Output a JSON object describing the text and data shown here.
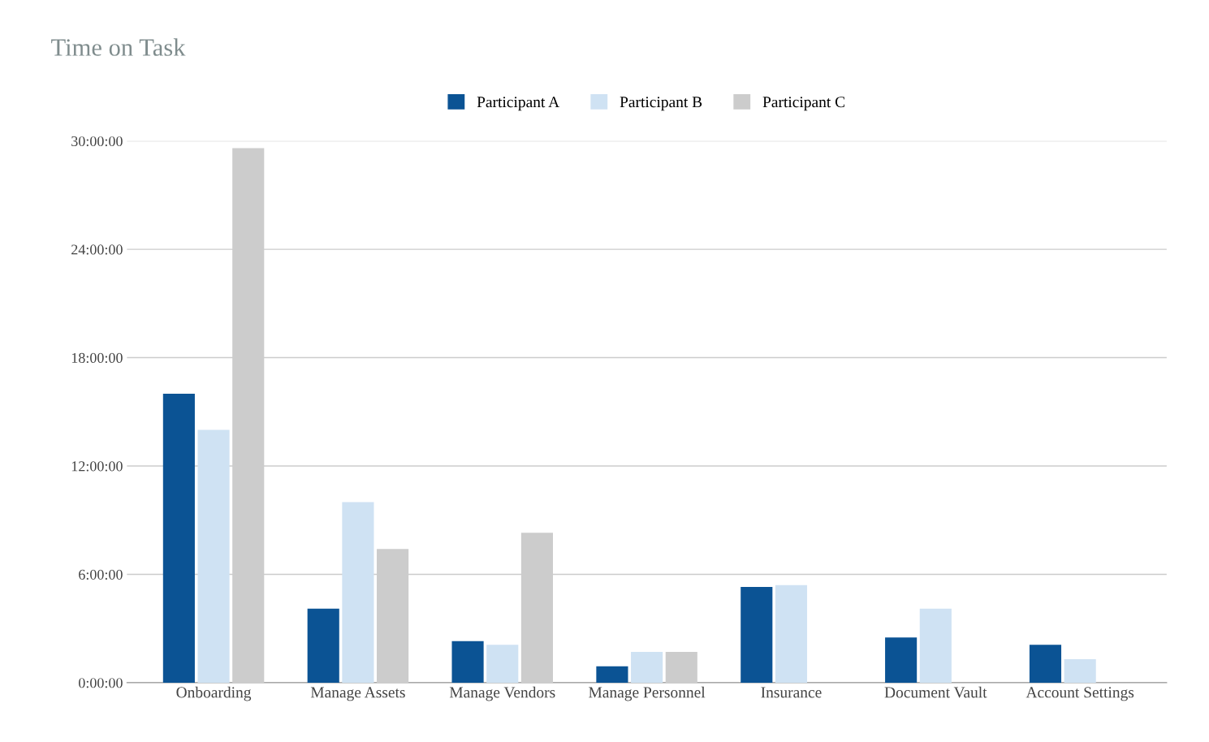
{
  "chart_data": {
    "type": "bar",
    "title": "Time on Task",
    "categories": [
      "Onboarding",
      "Manage Assets",
      "Manage Vendors",
      "Manage Personnel",
      "Insurance",
      "Document Vault",
      "Account Settings"
    ],
    "series": [
      {
        "name": "Participant A",
        "color": "#0b5394",
        "values": [
          16.0,
          4.1,
          2.3,
          0.9,
          5.3,
          2.5,
          2.1
        ]
      },
      {
        "name": "Participant B",
        "color": "#cfe2f3",
        "values": [
          14.0,
          10.0,
          2.1,
          1.7,
          5.4,
          4.1,
          1.3
        ]
      },
      {
        "name": "Participant C",
        "color": "#cccccc",
        "values": [
          29.6,
          7.4,
          8.3,
          1.7,
          null,
          null,
          null
        ]
      }
    ],
    "ylim": [
      0,
      30
    ],
    "yticks": [
      {
        "value": 0,
        "label": "0:00:00"
      },
      {
        "value": 6,
        "label": "6:00:00"
      },
      {
        "value": 12,
        "label": "12:00:00"
      },
      {
        "value": 18,
        "label": "18:00:00"
      },
      {
        "value": 24,
        "label": "24:00:00"
      },
      {
        "value": 30,
        "label": "30:00:00"
      }
    ],
    "grid": "y",
    "legend": "top"
  }
}
